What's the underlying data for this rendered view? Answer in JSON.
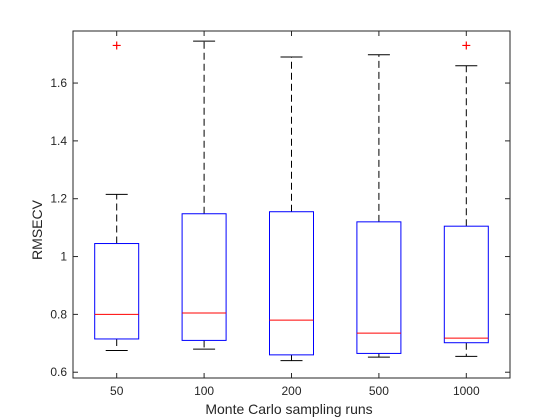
{
  "chart_data": {
    "type": "box",
    "title": "",
    "xlabel": "Monte Carlo sampling runs",
    "ylabel": "RMSECV",
    "categories": [
      "50",
      "100",
      "200",
      "500",
      "1000"
    ],
    "ylim": [
      0.58,
      1.78
    ],
    "yticks": [
      0.6,
      0.8,
      1.0,
      1.2,
      1.4,
      1.6
    ],
    "ytick_labels": [
      "0.6",
      "0.8",
      "1",
      "1.2",
      "1.4",
      "1.6"
    ],
    "grid": false,
    "boxes": [
      {
        "category": "50",
        "whisker_low": 0.675,
        "q1": 0.715,
        "median": 0.8,
        "q3": 1.045,
        "whisker_high": 1.215,
        "outliers": [
          1.73
        ]
      },
      {
        "category": "100",
        "whisker_low": 0.68,
        "q1": 0.71,
        "median": 0.805,
        "q3": 1.148,
        "whisker_high": 1.745,
        "outliers": []
      },
      {
        "category": "200",
        "whisker_low": 0.64,
        "q1": 0.66,
        "median": 0.78,
        "q3": 1.155,
        "whisker_high": 1.69,
        "outliers": []
      },
      {
        "category": "500",
        "whisker_low": 0.652,
        "q1": 0.665,
        "median": 0.735,
        "q3": 1.12,
        "whisker_high": 1.698,
        "outliers": []
      },
      {
        "category": "1000",
        "whisker_low": 0.655,
        "q1": 0.702,
        "median": 0.718,
        "q3": 1.105,
        "whisker_high": 1.66,
        "outliers": [
          1.73
        ]
      }
    ],
    "colors": {
      "box": "#0000ff",
      "median": "#ff0000",
      "whisker": "#000000",
      "outlier": "#ff0000",
      "axis": "#262626"
    }
  }
}
